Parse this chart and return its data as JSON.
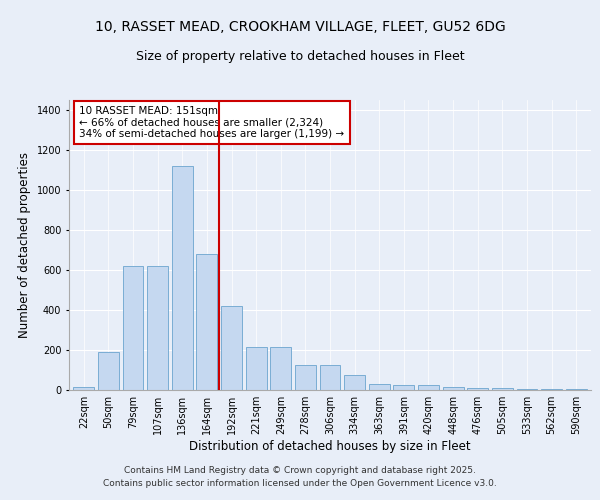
{
  "title1": "10, RASSET MEAD, CROOKHAM VILLAGE, FLEET, GU52 6DG",
  "title2": "Size of property relative to detached houses in Fleet",
  "xlabel": "Distribution of detached houses by size in Fleet",
  "ylabel": "Number of detached properties",
  "categories": [
    "22sqm",
    "50sqm",
    "79sqm",
    "107sqm",
    "136sqm",
    "164sqm",
    "192sqm",
    "221sqm",
    "249sqm",
    "278sqm",
    "306sqm",
    "334sqm",
    "363sqm",
    "391sqm",
    "420sqm",
    "448sqm",
    "476sqm",
    "505sqm",
    "533sqm",
    "562sqm",
    "590sqm"
  ],
  "values": [
    15,
    190,
    620,
    620,
    1120,
    680,
    420,
    215,
    215,
    125,
    125,
    75,
    30,
    25,
    25,
    15,
    10,
    10,
    5,
    5,
    5
  ],
  "bar_color": "#c5d8f0",
  "bar_edge_color": "#7aadd4",
  "vline_x_index": 5.5,
  "vline_color": "#cc0000",
  "annotation_text": "10 RASSET MEAD: 151sqm\n← 66% of detached houses are smaller (2,324)\n34% of semi-detached houses are larger (1,199) →",
  "annotation_box_color": "#ffffff",
  "annotation_box_edge": "#cc0000",
  "ylim": [
    0,
    1450
  ],
  "yticks": [
    0,
    200,
    400,
    600,
    800,
    1000,
    1200,
    1400
  ],
  "bg_color": "#e8eef8",
  "plot_bg_color": "#e8eef8",
  "footer1": "Contains HM Land Registry data © Crown copyright and database right 2025.",
  "footer2": "Contains public sector information licensed under the Open Government Licence v3.0.",
  "title_fontsize": 10,
  "subtitle_fontsize": 9,
  "axis_label_fontsize": 8.5,
  "tick_fontsize": 7,
  "annotation_fontsize": 7.5,
  "footer_fontsize": 6.5
}
